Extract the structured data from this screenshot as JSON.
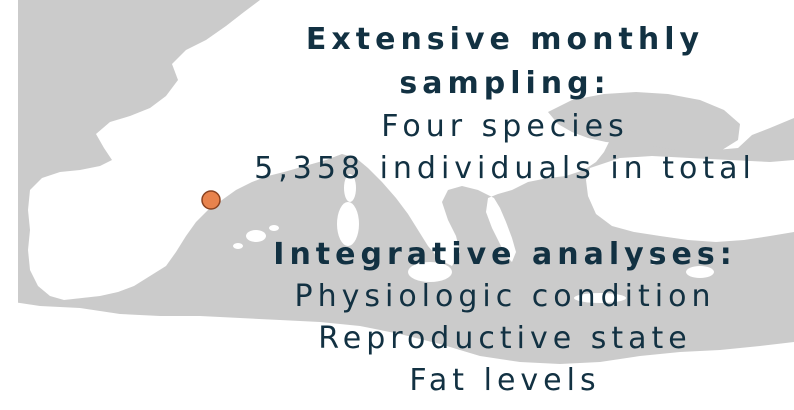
{
  "colors": {
    "sea": "#cbcbcb",
    "land": "#ffffff",
    "marker_fill": "#e8834d",
    "marker_stroke": "#8a4220",
    "text": "#123142"
  },
  "map": {
    "marker_icon": "sampling-site-marker-icon"
  },
  "sampling": {
    "heading_line1": "Extensive monthly",
    "heading_line2": "sampling:",
    "species": "Four species",
    "individuals": "5,358 individuals in total"
  },
  "analyses": {
    "heading": "Integrative analyses:",
    "items": [
      "Physiologic condition",
      "Reproductive state",
      "Fat levels"
    ]
  }
}
